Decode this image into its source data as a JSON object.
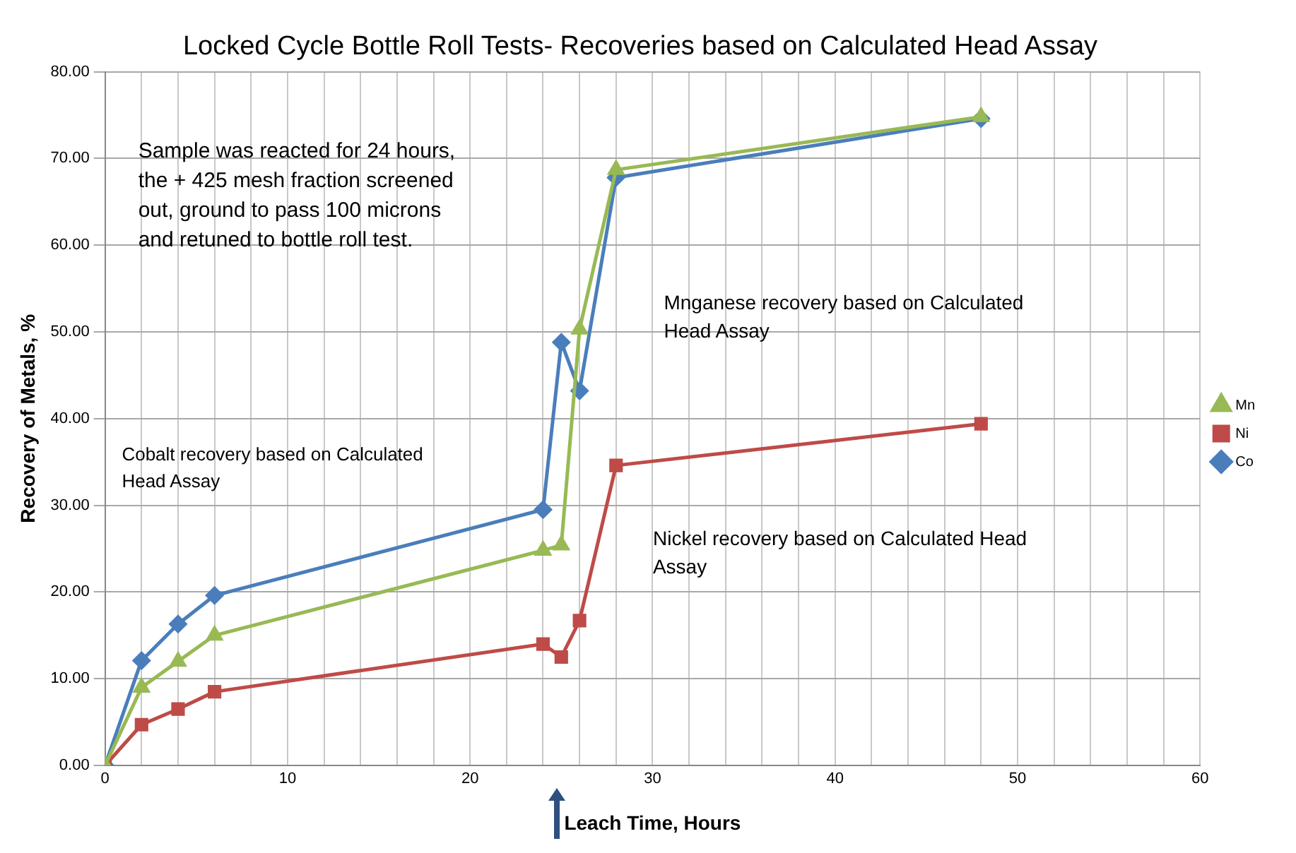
{
  "chart_data": {
    "type": "line",
    "title": "Locked Cycle Bottle Roll Tests- Recoveries based on Calculated Head Assay",
    "xlabel": "Leach Time, Hours",
    "ylabel": "Recovery of Metals, %",
    "x": [
      0,
      2,
      4,
      6,
      24,
      25,
      26,
      28,
      48
    ],
    "series": [
      {
        "name": "Co",
        "color": "#4a7ebb",
        "marker": "diamond",
        "values": [
          0,
          12.1,
          16.3,
          19.6,
          29.5,
          48.8,
          43.2,
          67.8,
          74.6
        ]
      },
      {
        "name": "Ni",
        "color": "#be4b48",
        "marker": "square",
        "values": [
          0,
          4.7,
          6.5,
          8.5,
          14.0,
          12.5,
          16.7,
          34.6,
          39.4
        ]
      },
      {
        "name": "Mn",
        "color": "#98b954",
        "marker": "triangle",
        "values": [
          0,
          9.0,
          12.0,
          15.0,
          24.8,
          25.4,
          50.3,
          68.7,
          74.8
        ]
      }
    ],
    "xlim": [
      0,
      60
    ],
    "xticks": [
      0,
      {
        "value": 2,
        "label": null
      },
      {
        "value": 4,
        "label": null
      },
      {
        "value": 6,
        "label": null
      },
      {
        "value": 8,
        "label": null
      },
      10,
      {
        "value": 12,
        "label": null
      },
      {
        "value": 14,
        "label": null
      },
      {
        "value": 16,
        "label": null
      },
      {
        "value": 18,
        "label": null
      },
      20,
      {
        "value": 22,
        "label": null
      },
      {
        "value": 24,
        "label": null
      },
      {
        "value": 26,
        "label": null
      },
      {
        "value": 28,
        "label": null
      },
      30,
      {
        "value": 32,
        "label": null
      },
      {
        "value": 34,
        "label": null
      },
      {
        "value": 36,
        "label": null
      },
      {
        "value": 38,
        "label": null
      },
      40,
      {
        "value": 42,
        "label": null
      },
      {
        "value": 44,
        "label": null
      },
      {
        "value": 46,
        "label": null
      },
      {
        "value": 48,
        "label": null
      },
      50,
      {
        "value": 52,
        "label": null
      },
      {
        "value": 54,
        "label": null
      },
      {
        "value": 56,
        "label": null
      },
      {
        "value": 58,
        "label": null
      },
      60
    ],
    "ylim": [
      0,
      80
    ],
    "yticks": [
      {
        "value": 0,
        "label": "0.00"
      },
      {
        "value": 10,
        "label": "10.00"
      },
      {
        "value": 20,
        "label": "20.00"
      },
      {
        "value": 30,
        "label": "30.00"
      },
      {
        "value": 40,
        "label": "40.00"
      },
      {
        "value": 50,
        "label": "50.00"
      },
      {
        "value": 60,
        "label": "60.00"
      },
      {
        "value": 70,
        "label": "70.00"
      },
      {
        "value": 80,
        "label": "80.00"
      }
    ],
    "grid": true,
    "legend": "right",
    "line_style": "solid",
    "annotations": [
      "Sample was reacted for 24 hours,\nthe + 425 mesh fraction screened\nout, ground to pass 100 microns\nand retuned to bottle roll test.",
      "Mnganese recovery based on Calculated\nHead Assay",
      "Cobalt recovery based on Calculated\nHead Assay",
      "Nickel recovery based on Calculated Head\nAssay"
    ]
  }
}
